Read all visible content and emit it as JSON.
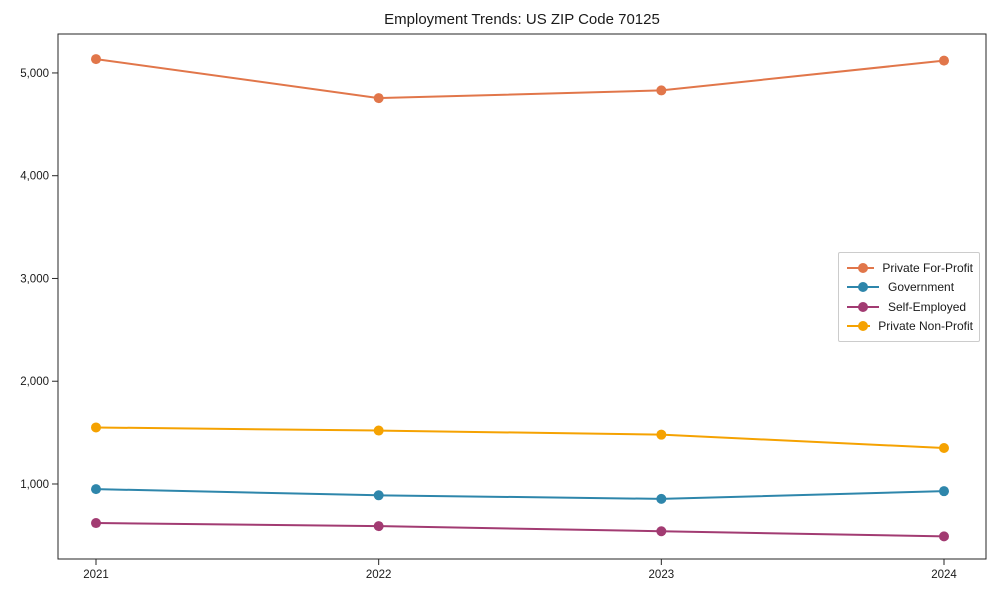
{
  "chart_data": {
    "type": "line",
    "title": "Employment Trends: US ZIP Code 70125",
    "xlabel": "",
    "ylabel": "",
    "categories": [
      "2021",
      "2022",
      "2023",
      "2024"
    ],
    "series": [
      {
        "name": "Private For-Profit",
        "color": "#E1764A",
        "values": [
          5135,
          4755,
          4830,
          5120
        ]
      },
      {
        "name": "Government",
        "color": "#2E86AB",
        "values": [
          950,
          890,
          855,
          930
        ]
      },
      {
        "name": "Self-Employed",
        "color": "#A23B72",
        "values": [
          620,
          590,
          540,
          490
        ]
      },
      {
        "name": "Private Non-Profit",
        "color": "#F5A201",
        "values": [
          1550,
          1520,
          1480,
          1350
        ]
      }
    ],
    "yticks": [
      {
        "value": 1000,
        "label": "1,000"
      },
      {
        "value": 2000,
        "label": "2,000"
      },
      {
        "value": 3000,
        "label": "3,000"
      },
      {
        "value": 4000,
        "label": "4,000"
      },
      {
        "value": 5000,
        "label": "5,000"
      }
    ],
    "ylim": [
      270,
      5379
    ],
    "grid": false,
    "legend_position": "center-right",
    "marker": "circle",
    "axis_color": "#262626",
    "text_color": "#1a1a1a",
    "background_color": "#ffffff"
  }
}
